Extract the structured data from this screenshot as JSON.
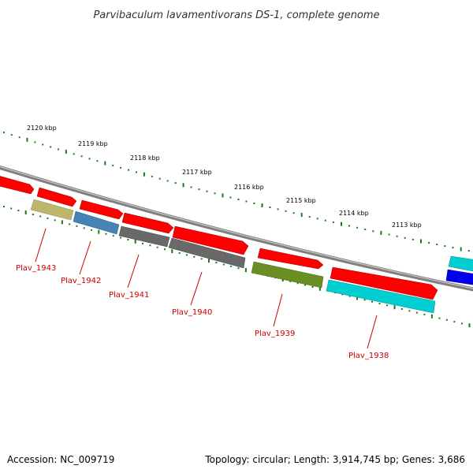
{
  "title": "Parvibaculum lavamentivorans DS-1, complete genome",
  "footer": {
    "accession": "Accession: NC_009719",
    "topology": "Topology: circular; Length: 3,914,745 bp; Genes: 3,686"
  },
  "ruler": {
    "ticks": [
      "2120 kbp",
      "2119 kbp",
      "2118 kbp",
      "2117 kbp",
      "2116 kbp",
      "2115 kbp",
      "2114 kbp",
      "2113 kbp"
    ],
    "dot_color": "#1a7a1a",
    "backbone_color": "#7f7f7f"
  },
  "genes": [
    {
      "label": "Plav_1943",
      "color": "#bdb76b",
      "strand": "minus"
    },
    {
      "label": "Plav_1942",
      "color": "#4682b4",
      "strand": "minus"
    },
    {
      "label": "Plav_1941",
      "color": "#696969",
      "strand": "minus"
    },
    {
      "label": "Plav_1940",
      "color": "#696969",
      "strand": "minus"
    },
    {
      "label": "Plav_1939",
      "color": "#6b8e23",
      "strand": "minus"
    },
    {
      "label": "Plav_1938",
      "color": "#00ced1",
      "strand": "minus"
    }
  ],
  "colors": {
    "cds_plus": "#ff0000",
    "cyan_gene": "#00ced1",
    "blue_gene": "#0000ee",
    "label_red": "#cc0000"
  }
}
